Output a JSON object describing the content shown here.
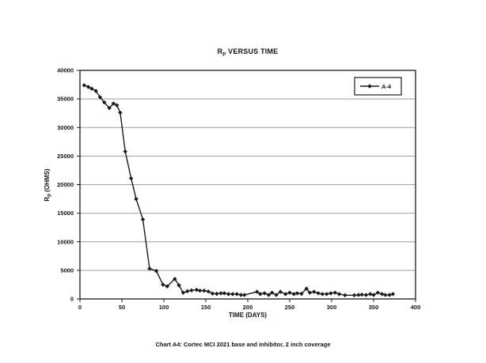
{
  "chart_data": {
    "type": "line",
    "title": "Rp VERSUS TIME",
    "title_parts": {
      "main": "R",
      "sub": "p",
      "rest": " VERSUS TIME"
    },
    "xlabel": "TIME (DAYS)",
    "ylabel": "Rp (OHMS)",
    "ylabel_parts": {
      "main": "R",
      "sub": "p",
      "rest": " (OHMS)"
    },
    "caption": "Chart A4: Cortec MCI 2021 base and inhibitor, 2 inch coverage",
    "xlim": [
      0,
      400
    ],
    "ylim": [
      0,
      40000
    ],
    "x_ticks": [
      0,
      50,
      100,
      150,
      200,
      250,
      300,
      350,
      400
    ],
    "y_ticks": [
      0,
      5000,
      10000,
      15000,
      20000,
      25000,
      30000,
      35000,
      40000
    ],
    "grid": "horizontal",
    "grid_color": "#9e9e9e",
    "line_color": "#1a1a1a",
    "text_color": "#141414",
    "legend": {
      "position": "top-right",
      "entries": [
        {
          "label": "A-4",
          "marker": "diamond",
          "color": "#1a1a1a"
        }
      ]
    },
    "series": [
      {
        "name": "A-4",
        "points": [
          [
            5,
            37400
          ],
          [
            10,
            37100
          ],
          [
            14,
            36800
          ],
          [
            19,
            36400
          ],
          [
            24,
            35300
          ],
          [
            29,
            34400
          ],
          [
            35,
            33400
          ],
          [
            40,
            34200
          ],
          [
            44,
            33900
          ],
          [
            48,
            32600
          ],
          [
            54,
            25800
          ],
          [
            61,
            21100
          ],
          [
            67,
            17500
          ],
          [
            75,
            13900
          ],
          [
            83,
            5300
          ],
          [
            91,
            4900
          ],
          [
            99,
            2500
          ],
          [
            104,
            2200
          ],
          [
            113,
            3500
          ],
          [
            118,
            2400
          ],
          [
            123,
            1100
          ],
          [
            128,
            1350
          ],
          [
            133,
            1500
          ],
          [
            139,
            1600
          ],
          [
            143,
            1450
          ],
          [
            148,
            1450
          ],
          [
            153,
            1300
          ],
          [
            158,
            950
          ],
          [
            163,
            900
          ],
          [
            168,
            1000
          ],
          [
            172,
            1000
          ],
          [
            177,
            850
          ],
          [
            182,
            850
          ],
          [
            187,
            850
          ],
          [
            192,
            700
          ],
          [
            196,
            700
          ],
          [
            211,
            1250
          ],
          [
            215,
            850
          ],
          [
            220,
            1000
          ],
          [
            225,
            700
          ],
          [
            229,
            1100
          ],
          [
            234,
            700
          ],
          [
            239,
            1250
          ],
          [
            245,
            850
          ],
          [
            250,
            1100
          ],
          [
            255,
            850
          ],
          [
            259,
            1000
          ],
          [
            264,
            900
          ],
          [
            270,
            1800
          ],
          [
            274,
            1100
          ],
          [
            279,
            1250
          ],
          [
            284,
            1000
          ],
          [
            289,
            850
          ],
          [
            294,
            850
          ],
          [
            299,
            1000
          ],
          [
            304,
            1100
          ],
          [
            309,
            850
          ],
          [
            316,
            650
          ],
          [
            327,
            650
          ],
          [
            332,
            700
          ],
          [
            336,
            750
          ],
          [
            341,
            700
          ],
          [
            346,
            850
          ],
          [
            350,
            700
          ],
          [
            355,
            1100
          ],
          [
            360,
            850
          ],
          [
            364,
            700
          ],
          [
            369,
            700
          ],
          [
            373,
            850
          ]
        ]
      }
    ]
  }
}
